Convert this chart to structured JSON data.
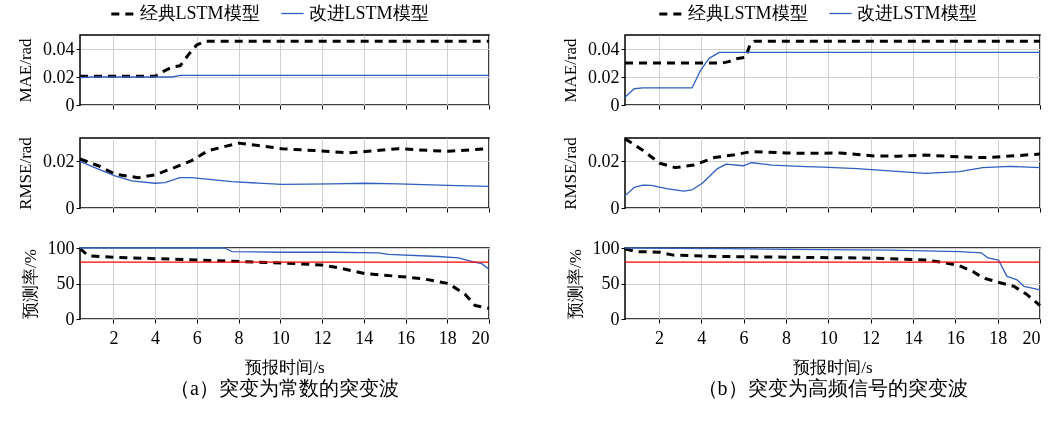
{
  "chart_data": [
    {
      "type": "line",
      "ylabel": "MAE/rad",
      "xlim": [
        0.4,
        20
      ],
      "xticks": [
        2,
        4,
        6,
        8,
        10,
        12,
        14,
        16,
        18,
        20
      ],
      "ylim": [
        0,
        0.05
      ],
      "yticks": [
        0,
        0.02,
        0.04
      ],
      "grid": true,
      "tick_labels": "y",
      "legend": "top",
      "series": [
        {
          "name": "经典LSTM模型",
          "color": "#000000",
          "line_style": "dashed",
          "x": [
            0.4,
            4.0,
            4.4,
            4.8,
            5.2,
            5.6,
            6.0,
            6.4,
            20
          ],
          "values": [
            0.0205,
            0.0205,
            0.024,
            0.027,
            0.028,
            0.036,
            0.043,
            0.0455,
            0.0455
          ]
        },
        {
          "name": "改进LSTM模型",
          "color": "#2f5fbf",
          "line_style": "solid",
          "x": [
            0.4,
            1.0,
            4.8,
            5.2,
            20
          ],
          "values": [
            0.0195,
            0.02,
            0.02,
            0.0212,
            0.0212
          ]
        }
      ]
    },
    {
      "type": "line",
      "ylabel": "RMSE/rad",
      "xlim": [
        0.4,
        20
      ],
      "xticks": [
        2,
        4,
        6,
        8,
        10,
        12,
        14,
        16,
        18,
        20
      ],
      "ylim": [
        0,
        0.03
      ],
      "yticks": [
        0,
        0.02
      ],
      "grid": true,
      "tick_labels": "y",
      "series": [
        {
          "color": "#000000",
          "line_style": "dashed",
          "x": [
            0.4,
            1.28,
            2.08,
            3.2,
            4,
            4.95,
            5.75,
            6.55,
            8,
            8.95,
            10.07,
            11.66,
            13.26,
            14.06,
            15.66,
            17.25,
            18.05,
            20
          ],
          "values": [
            0.021,
            0.0181,
            0.0145,
            0.013,
            0.0142,
            0.0174,
            0.0203,
            0.0246,
            0.0278,
            0.0268,
            0.0254,
            0.0246,
            0.0236,
            0.0242,
            0.0254,
            0.0246,
            0.0243,
            0.0254
          ]
        },
        {
          "color": "#2f5fbf",
          "line_style": "solid",
          "x": [
            0.4,
            1.28,
            2.08,
            2.88,
            4,
            4.47,
            5.19,
            5.75,
            7.67,
            10.07,
            12.46,
            14.06,
            15.66,
            18.05,
            20
          ],
          "values": [
            0.02,
            0.0167,
            0.0138,
            0.0116,
            0.0106,
            0.0109,
            0.013,
            0.013,
            0.0113,
            0.0101,
            0.0103,
            0.0106,
            0.0103,
            0.0097,
            0.0093
          ]
        }
      ]
    },
    {
      "type": "line",
      "xlabel": "预报时间/s",
      "ylabel": "预测率/%",
      "xlim": [
        0.4,
        20
      ],
      "xticks": [
        2,
        4,
        6,
        8,
        10,
        12,
        14,
        16,
        18,
        20
      ],
      "ylim": [
        0,
        100
      ],
      "yticks": [
        0,
        50,
        100
      ],
      "grid": true,
      "annotations": [
        "（a）突变为常数的突变波"
      ],
      "ref_lines": [
        {
          "axis": "y",
          "value": 80,
          "color": "#ff0000"
        }
      ],
      "series": [
        {
          "color": "#000000",
          "line_style": "dashed",
          "x": [
            0.4,
            0.8,
            2.08,
            4,
            6.07,
            8,
            10.07,
            12,
            12.8,
            14.06,
            15.66,
            16.77,
            18.05,
            18.85,
            19.33,
            20
          ],
          "values": [
            99,
            89,
            87,
            85,
            83,
            81,
            79,
            76,
            72,
            64,
            60,
            57,
            50,
            35,
            19,
            15
          ]
        },
        {
          "color": "#2f5fbf",
          "line_style": "solid",
          "x": [
            0.4,
            7.35,
            7.67,
            10.07,
            12.46,
            14.7,
            15.18,
            17.57,
            18.53,
            19.17,
            19.65,
            20
          ],
          "values": [
            100,
            100,
            95,
            94,
            94,
            93,
            91,
            88,
            86,
            81,
            78,
            70
          ]
        }
      ]
    },
    {
      "type": "line",
      "ylabel": "MAE/rad",
      "xlim": [
        0.4,
        20
      ],
      "xticks": [
        2,
        4,
        6,
        8,
        10,
        12,
        14,
        16,
        18,
        20
      ],
      "ylim": [
        0,
        0.05
      ],
      "yticks": [
        0,
        0.02,
        0.04
      ],
      "grid": true,
      "tick_labels": "y",
      "legend": "top",
      "series": [
        {
          "name": "经典LSTM模型",
          "color": "#000000",
          "line_style": "dashed",
          "x": [
            0.4,
            5.0,
            5.3,
            5.6,
            6.1,
            6.3,
            6.5,
            20
          ],
          "values": [
            0.03,
            0.03,
            0.031,
            0.033,
            0.034,
            0.043,
            0.0455,
            0.0455
          ]
        },
        {
          "name": "改进LSTM模型",
          "color": "#2f5fbf",
          "line_style": "solid",
          "x": [
            0.4,
            0.83,
            1.24,
            3.57,
            3.97,
            4.37,
            4.85,
            20
          ],
          "values": [
            0.0055,
            0.0116,
            0.0123,
            0.0123,
            0.0248,
            0.0333,
            0.0376,
            0.0376
          ]
        }
      ]
    },
    {
      "type": "line",
      "ylabel": "RMSE/rad",
      "xlim": [
        0.4,
        20
      ],
      "xticks": [
        2,
        4,
        6,
        8,
        10,
        12,
        14,
        16,
        18,
        20
      ],
      "ylim": [
        0,
        0.03
      ],
      "yticks": [
        0,
        0.02
      ],
      "grid": true,
      "tick_labels": "y",
      "series": [
        {
          "color": "#000000",
          "line_style": "dashed",
          "x": [
            0.4,
            1.24,
            2.04,
            2.77,
            3.65,
            4.61,
            5.58,
            6.38,
            7.99,
            8.95,
            10.56,
            12.17,
            13.29,
            14.58,
            16.19,
            17.47,
            20
          ],
          "values": [
            0.0297,
            0.0247,
            0.0192,
            0.0173,
            0.0184,
            0.0216,
            0.0228,
            0.0242,
            0.0236,
            0.0234,
            0.0236,
            0.0223,
            0.0222,
            0.0227,
            0.0219,
            0.0216,
            0.0231
          ]
        },
        {
          "color": "#2f5fbf",
          "line_style": "solid",
          "x": [
            0.4,
            0.83,
            1.24,
            1.64,
            2.36,
            3.17,
            3.57,
            4.05,
            4.77,
            5.18,
            5.98,
            6.38,
            7.35,
            8.95,
            9.76,
            11.36,
            14.58,
            16.19,
            17.3,
            18.6,
            20
          ],
          "values": [
            0.0052,
            0.0088,
            0.0098,
            0.0097,
            0.0083,
            0.0072,
            0.0078,
            0.0106,
            0.0169,
            0.0188,
            0.0181,
            0.0194,
            0.0184,
            0.0177,
            0.0175,
            0.0169,
            0.0148,
            0.0156,
            0.0173,
            0.0178,
            0.0173
          ]
        }
      ]
    },
    {
      "type": "line",
      "xlabel": "预报时间/s",
      "ylabel": "预测率/%",
      "xlim": [
        0.4,
        20
      ],
      "xticks": [
        2,
        4,
        6,
        8,
        10,
        12,
        14,
        16,
        18,
        20
      ],
      "ylim": [
        0,
        100
      ],
      "yticks": [
        0,
        50,
        100
      ],
      "grid": true,
      "annotations": [
        "（b）突变为高频信号的突变波"
      ],
      "ref_lines": [
        {
          "axis": "y",
          "value": 80,
          "color": "#ff0000"
        }
      ],
      "series": [
        {
          "color": "#000000",
          "line_style": "dashed",
          "x": [
            0.4,
            0.91,
            2.04,
            2.68,
            4.93,
            8.15,
            11.36,
            12.97,
            14.58,
            15.38,
            16.19,
            16.83,
            17.3,
            18.12,
            18.77,
            19.4,
            20
          ],
          "values": [
            99,
            95,
            94,
            90,
            88,
            87,
            86,
            85,
            83,
            80,
            75,
            67,
            58,
            51,
            46,
            34,
            19
          ]
        },
        {
          "color": "#2f5fbf",
          "line_style": "solid",
          "x": [
            0.4,
            5.26,
            8.15,
            12.97,
            16.19,
            17.23,
            17.55,
            18.04,
            18.44,
            18.92,
            19.24,
            20
          ],
          "values": [
            100,
            99,
            98,
            97,
            95,
            93,
            86,
            83,
            60,
            55,
            46,
            41
          ]
        }
      ]
    }
  ]
}
